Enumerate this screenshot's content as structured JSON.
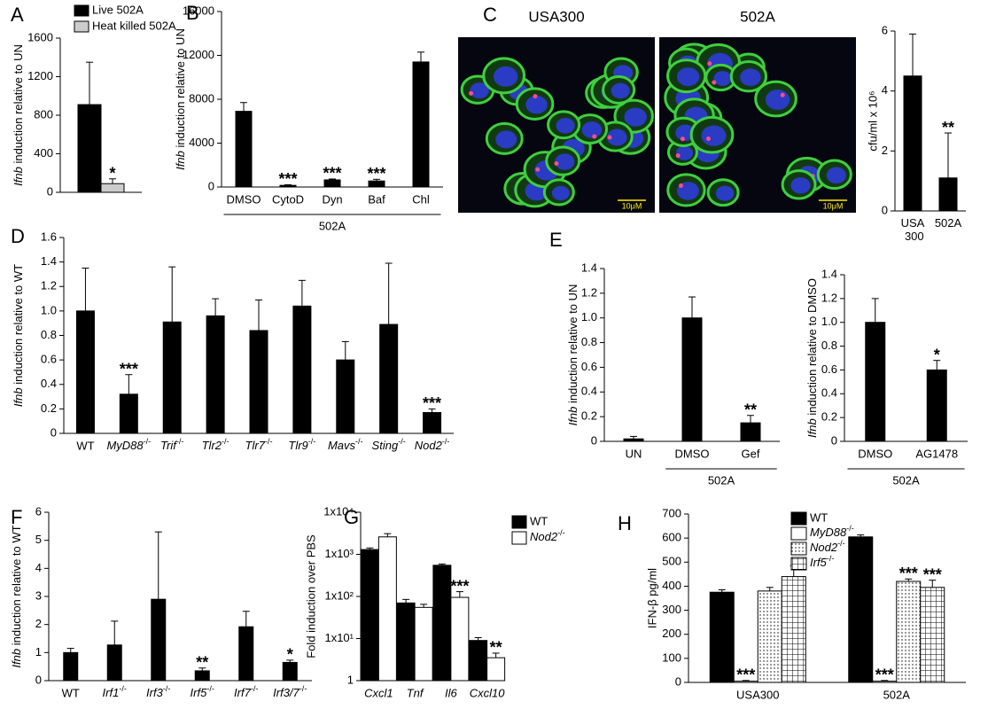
{
  "chart_data": [
    {
      "type": "bar",
      "panel": "A",
      "ylabel": "Ifnb induction relative to UN",
      "ylabel_italic_first_word": true,
      "categories": [
        null
      ],
      "series": [
        {
          "name": "Live 502A",
          "color": "#000000",
          "values": [
            910
          ],
          "errors": [
            440
          ],
          "significance": [
            null
          ]
        },
        {
          "name": "Heat killed 502A",
          "color": "#cccccc",
          "values": [
            90
          ],
          "errors": [
            50
          ],
          "significance": [
            "*"
          ]
        }
      ],
      "ylim": [
        0,
        1600
      ],
      "yticks": [
        0,
        400,
        800,
        1200,
        1600
      ]
    },
    {
      "type": "bar",
      "panel": "B",
      "ylabel": "Ifnb induction relative to UN",
      "ylabel_italic_first_word": true,
      "categories": [
        "DMSO",
        "CytoD",
        "Dyn",
        "Baf",
        "Chl"
      ],
      "color": "#000000",
      "values": [
        6900,
        150,
        650,
        550,
        11400
      ],
      "errors": [
        800,
        60,
        80,
        150,
        900
      ],
      "significance": [
        null,
        "***",
        "***",
        "***",
        null
      ],
      "group": {
        "label": "502A",
        "categories": [
          "DMSO",
          "Chl"
        ]
      },
      "ylim": [
        0,
        16000
      ],
      "yticks": [
        0,
        4000,
        8000,
        12000,
        16000
      ]
    },
    {
      "type": "bar",
      "panel": "C",
      "ylabel": "cfu/ml x 10⁶",
      "images": [
        {
          "title": "USA300",
          "scale_bar": "10μM"
        },
        {
          "title": "502A",
          "scale_bar": "10μM"
        }
      ],
      "categories": [
        "USA 300",
        "502A"
      ],
      "wrap_categories": true,
      "color": "#000000",
      "values": [
        4.5,
        1.1
      ],
      "errors": [
        1.4,
        1.5
      ],
      "significance": [
        null,
        "**"
      ],
      "ylim": [
        0,
        6
      ],
      "yticks": [
        0,
        2,
        4,
        6
      ]
    },
    {
      "type": "bar",
      "panel": "D",
      "ylabel": "Ifnb induction relative to WT",
      "ylabel_italic_first_word": true,
      "categories": [
        "WT",
        "MyD88-/-",
        "Trif-/-",
        "Tlr2-/-",
        "Tlr7-/-",
        "Tlr9-/-",
        "Mavs-/-",
        "Sting-/-",
        "Nod2-/-"
      ],
      "color": "#000000",
      "values": [
        1.0,
        0.32,
        0.91,
        0.96,
        0.84,
        1.04,
        0.6,
        0.89,
        0.17
      ],
      "errors": [
        0.35,
        0.16,
        0.45,
        0.14,
        0.25,
        0.21,
        0.15,
        0.5,
        0.03
      ],
      "significance": [
        null,
        "***",
        null,
        null,
        null,
        null,
        null,
        null,
        "***"
      ],
      "ylim": [
        0,
        1.6
      ],
      "yticks": [
        0,
        0.2,
        0.4,
        0.6,
        0.8,
        {
          "value": 1,
          "label": "1.0"
        },
        1.2,
        1.4,
        1.6
      ]
    },
    {
      "type": "bar",
      "panel": "E",
      "ylabel": "Ifnb induction relative to UN",
      "ylabel_italic_first_word": true,
      "categories": [
        "UN",
        "DMSO",
        "Gef"
      ],
      "color": "#000000",
      "values": [
        0.02,
        1.0,
        0.15
      ],
      "errors": [
        0.02,
        0.17,
        0.06
      ],
      "significance": [
        null,
        null,
        "**"
      ],
      "group": {
        "label": "502A",
        "categories": [
          "DMSO",
          "Gef"
        ]
      },
      "ylim": [
        0,
        1.4
      ],
      "yticks": [
        0,
        0.2,
        0.4,
        0.6,
        0.8,
        {
          "value": 1,
          "label": "1.0"
        },
        1.2,
        1.4
      ]
    },
    {
      "type": "bar",
      "ylabel": "Ifnb induction relative to DMSO",
      "ylabel_italic_first_word": true,
      "categories": [
        "DMSO",
        "AG1478"
      ],
      "color": "#000000",
      "values": [
        1.0,
        0.6
      ],
      "errors": [
        0.2,
        0.08
      ],
      "significance": [
        null,
        "*"
      ],
      "group": {
        "label": "502A",
        "categories": [
          "DMSO",
          "AG1478"
        ]
      },
      "ylim": [
        0,
        1.4
      ],
      "yticks": [
        0,
        0.2,
        0.4,
        0.6,
        0.8,
        {
          "value": 1,
          "label": "1.0"
        },
        1.2,
        1.4
      ]
    },
    {
      "type": "bar",
      "panel": "F",
      "ylabel": "Ifnb induction relative to WT",
      "ylabel_italic_first_word": true,
      "categories": [
        "WT",
        "Irf1-/-",
        "Irf3-/-",
        "Irf5-/-",
        "Irf7-/-",
        "Irf3/7-/-"
      ],
      "color": "#000000",
      "values": [
        1.0,
        1.27,
        2.9,
        0.35,
        1.92,
        0.65
      ],
      "errors": [
        0.15,
        0.85,
        2.4,
        0.1,
        0.55,
        0.08
      ],
      "significance": [
        null,
        null,
        null,
        "**",
        null,
        "*"
      ],
      "ylim": [
        0,
        6
      ],
      "yticks": [
        0,
        1,
        2,
        3,
        4,
        5,
        6
      ]
    },
    {
      "type": "bar",
      "panel": "G",
      "ylabel": "Fold induction over PBS",
      "log": true,
      "italic_categories": true,
      "categories": [
        "Cxcl1",
        "Tnf",
        "Il6",
        "Cxcl10"
      ],
      "series": [
        {
          "name": "WT",
          "color": "#000000",
          "values": [
            1300,
            70,
            550,
            9
          ],
          "errors": [
            120,
            15,
            40,
            1.5
          ],
          "significance": [
            null,
            null,
            null,
            null
          ]
        },
        {
          "name": "Nod2-/-",
          "color": "#ffffff",
          "values": [
            2600,
            55,
            95,
            3.5
          ],
          "errors": [
            500,
            10,
            35,
            1
          ],
          "significance": [
            null,
            null,
            "***",
            "**"
          ]
        }
      ],
      "ylim": [
        1,
        10000
      ],
      "yticks": [
        1,
        {
          "value": 10,
          "label": "1x10¹"
        },
        {
          "value": 100,
          "label": "1x10²"
        },
        {
          "value": 1000,
          "label": "1x10³"
        },
        {
          "value": 10000,
          "label": "1x10⁴"
        }
      ]
    },
    {
      "type": "bar",
      "panel": "H",
      "ylabel": "IFN-β pg/ml",
      "categories": [
        "USA300",
        "502A"
      ],
      "series": [
        {
          "name": "WT",
          "color": "#000000",
          "values": [
            375,
            605
          ],
          "errors": [
            10,
            8
          ],
          "significance": [
            null,
            null
          ]
        },
        {
          "name": "MyD88-/-",
          "color": "#ffffff",
          "values": [
            5,
            5
          ],
          "errors": [
            3,
            3
          ],
          "significance": [
            "***",
            "***"
          ]
        },
        {
          "name": "Nod2-/-",
          "color": "#ffffff",
          "pattern": "dots",
          "values": [
            380,
            420
          ],
          "errors": [
            15,
            10
          ],
          "significance": [
            null,
            "***"
          ]
        },
        {
          "name": "Irf5-/-",
          "color": "#ffffff",
          "pattern": "grid",
          "values": [
            440,
            395
          ],
          "errors": [
            45,
            30
          ],
          "significance": [
            null,
            "***"
          ]
        }
      ],
      "ylim": [
        0,
        700
      ],
      "yticks": [
        0,
        100,
        200,
        300,
        400,
        500,
        600,
        700
      ]
    }
  ]
}
